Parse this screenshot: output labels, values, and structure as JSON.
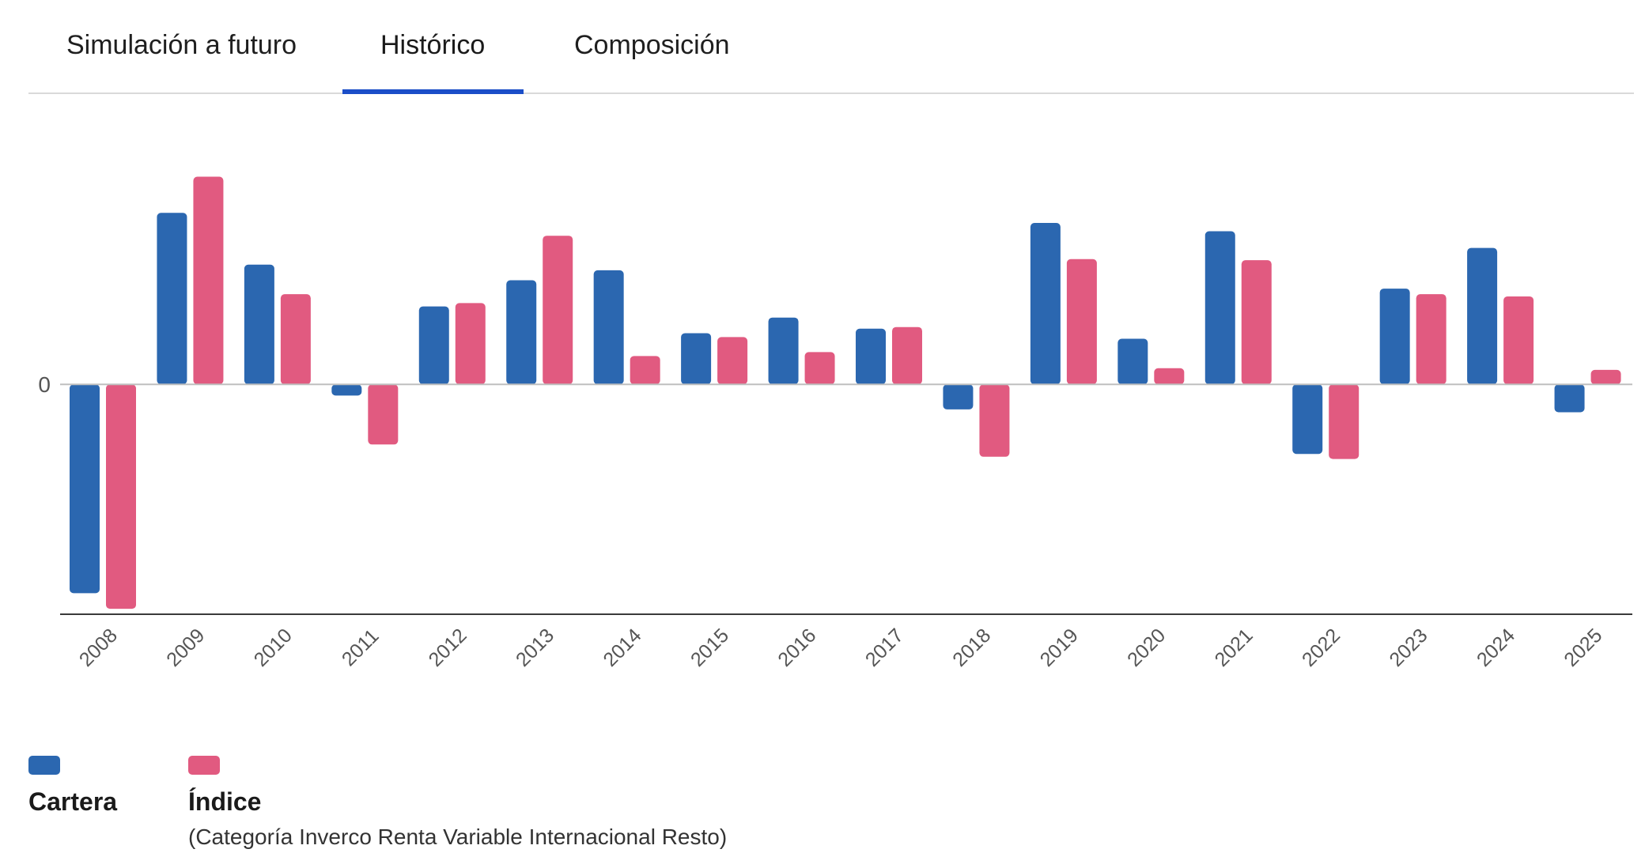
{
  "tabs": [
    {
      "label": "Simulación a futuro",
      "active": false
    },
    {
      "label": "Histórico",
      "active": true
    },
    {
      "label": "Composición",
      "active": false
    }
  ],
  "colors": {
    "accent": "#1b4ec8",
    "cartera": "#2b67b0",
    "indice": "#e15a80",
    "axis": "#3a3a3a",
    "zeroline": "#bfbfbf",
    "tick": "#555555"
  },
  "chart_data": {
    "type": "bar",
    "categories": [
      "2008",
      "2009",
      "2010",
      "2011",
      "2012",
      "2013",
      "2014",
      "2015",
      "2016",
      "2017",
      "2018",
      "2019",
      "2020",
      "2021",
      "2022",
      "2023",
      "2024",
      "2025"
    ],
    "series": [
      {
        "name": "Cartera",
        "values": [
          -37.5,
          30.8,
          21.5,
          -2.0,
          14.0,
          18.7,
          20.5,
          9.2,
          12.0,
          10.0,
          -4.5,
          29.0,
          8.2,
          27.5,
          -12.5,
          17.2,
          24.5,
          -5.0
        ]
      },
      {
        "name": "Índice",
        "values": [
          -40.3,
          37.3,
          16.2,
          -10.8,
          14.6,
          26.7,
          5.1,
          8.5,
          5.8,
          10.3,
          -13.0,
          22.5,
          2.9,
          22.3,
          -13.4,
          16.2,
          15.8,
          2.6
        ]
      }
    ],
    "ytick_labels": [
      "0"
    ],
    "ylim": [
      -41,
      52
    ],
    "title": "",
    "xlabel": "",
    "ylabel": ""
  },
  "legend": [
    {
      "label": "Cartera",
      "subtitle": ""
    },
    {
      "label": "Índice",
      "subtitle": "(Categoría Inverco Renta Variable Internacional Resto)"
    }
  ]
}
